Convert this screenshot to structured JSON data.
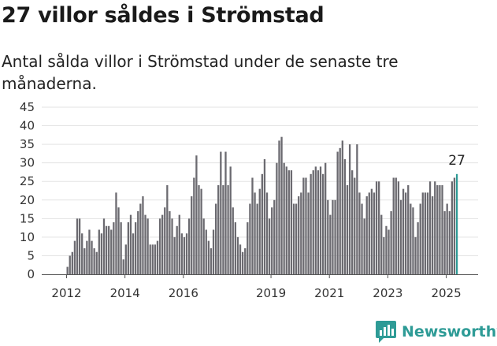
{
  "title": "27 villor såldes i Strömstad",
  "subtitle": "Antal sålda villor i Strömstad under de senaste tre månaderna.",
  "brand": {
    "name": "Newsworthy",
    "icon": "newsworthy-logo-icon",
    "color": "#2e9b96"
  },
  "chart_data": {
    "type": "bar",
    "title": "",
    "xlabel": "",
    "ylabel": "",
    "ylim": [
      0,
      45
    ],
    "yticks": [
      0,
      5,
      10,
      15,
      20,
      25,
      30,
      35,
      40,
      45
    ],
    "xticks": [
      2012,
      2014,
      2016,
      2019,
      2021,
      2023,
      2025
    ],
    "x_start": "2012-01",
    "frequency": "monthly",
    "bar_color": "#6b6a70",
    "highlight_color": "#2e9b96",
    "highlight_label": "27",
    "grid": "horizontal",
    "values": [
      2,
      5,
      6,
      9,
      15,
      15,
      11,
      7,
      9,
      12,
      9,
      7,
      6,
      12,
      11,
      15,
      13,
      13,
      12,
      14,
      22,
      18,
      14,
      4,
      8,
      14,
      16,
      11,
      14,
      17,
      19,
      21,
      16,
      15,
      8,
      8,
      8,
      9,
      15,
      16,
      18,
      24,
      17,
      15,
      10,
      13,
      16,
      11,
      10,
      11,
      15,
      21,
      26,
      32,
      24,
      23,
      15,
      12,
      9,
      7,
      12,
      19,
      24,
      33,
      24,
      33,
      24,
      29,
      18,
      14,
      10,
      8,
      6,
      7,
      14,
      19,
      26,
      22,
      19,
      23,
      27,
      31,
      22,
      15,
      18,
      20,
      30,
      36,
      37,
      30,
      29,
      28,
      28,
      19,
      19,
      21,
      22,
      26,
      26,
      22,
      27,
      28,
      29,
      28,
      29,
      27,
      30,
      20,
      16,
      20,
      20,
      33,
      34,
      36,
      31,
      24,
      35,
      28,
      26,
      35,
      22,
      19,
      15,
      21,
      22,
      23,
      22,
      25,
      25,
      16,
      10,
      13,
      12,
      17,
      26,
      26,
      25,
      20,
      23,
      22,
      24,
      19,
      18,
      10,
      14,
      19,
      22,
      22,
      22,
      25,
      21,
      25,
      24,
      24,
      24,
      17,
      19,
      17,
      25,
      26,
      27
    ]
  }
}
